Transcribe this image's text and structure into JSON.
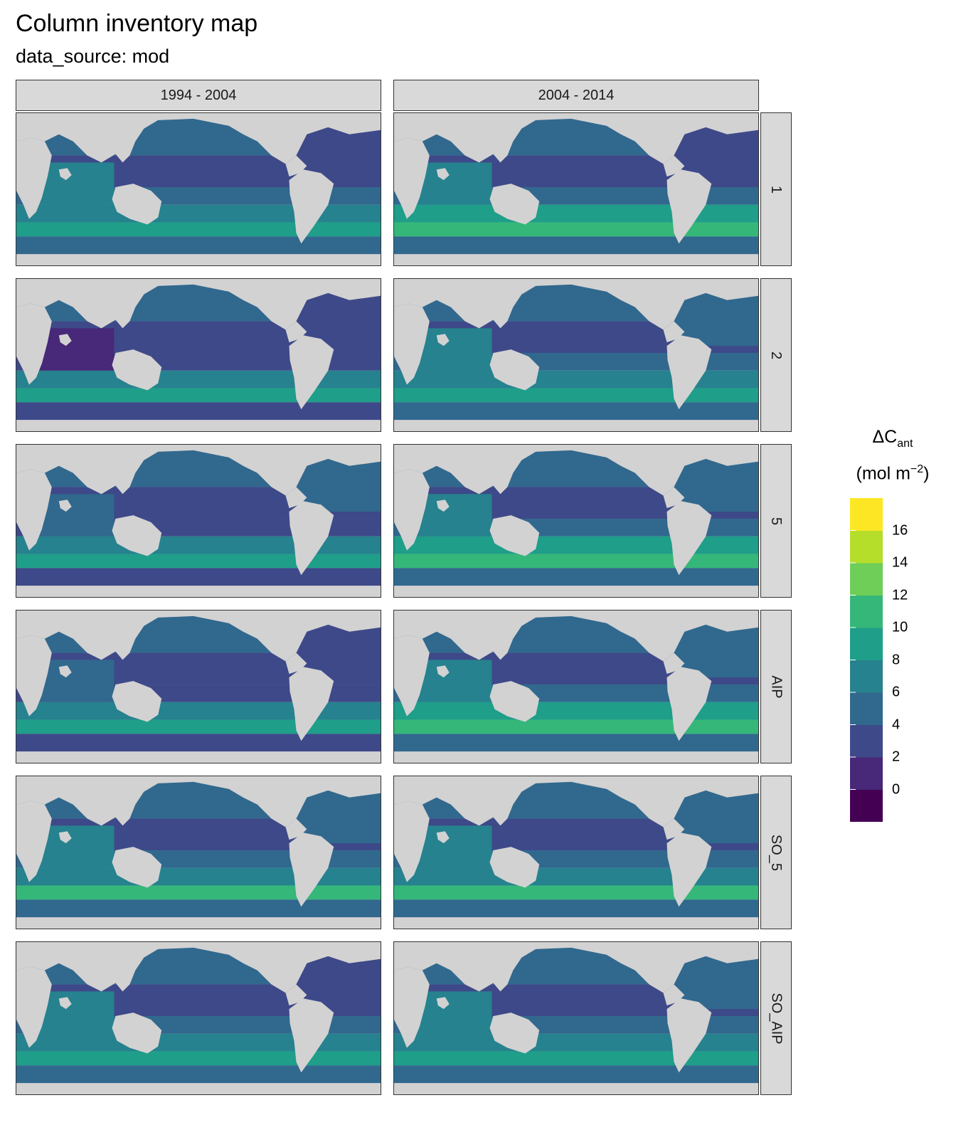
{
  "title": "Column inventory map",
  "subtitle": "data_source: mod",
  "chart_data": {
    "type": "heatmap",
    "title": "Column inventory map",
    "subtitle": "data_source: mod",
    "facet_columns": [
      "1994 - 2004",
      "2004 - 2014"
    ],
    "facet_rows": [
      "1",
      "2",
      "5",
      "AIP",
      "SO_5",
      "SO_AIP"
    ],
    "legend": {
      "title_main": "ΔC",
      "title_sub": "ant",
      "unit_main": "(mol m",
      "unit_sup": "−2",
      "unit_end": ")",
      "position": "right",
      "breaks": [
        0,
        2,
        4,
        6,
        8,
        10,
        12,
        14,
        16
      ],
      "bins": [
        {
          "from": -2,
          "to": 0,
          "color": "#440154"
        },
        {
          "from": 0,
          "to": 2,
          "color": "#482878"
        },
        {
          "from": 2,
          "to": 4,
          "color": "#3e4989"
        },
        {
          "from": 4,
          "to": 6,
          "color": "#31688e"
        },
        {
          "from": 6,
          "to": 8,
          "color": "#26828e"
        },
        {
          "from": 8,
          "to": 10,
          "color": "#1f9e89"
        },
        {
          "from": 10,
          "to": 12,
          "color": "#35b779"
        },
        {
          "from": 12,
          "to": 14,
          "color": "#6ece58"
        },
        {
          "from": 14,
          "to": 16,
          "color": "#b5de2b"
        },
        {
          "from": 16,
          "to": 18,
          "color": "#fde725"
        }
      ]
    },
    "land_color": "#d2d2d2",
    "panels": [
      {
        "row": "1",
        "col": "1994 - 2004",
        "south_ocean": 9,
        "mid_south": 7,
        "tropics": 4,
        "north_pacific": 4,
        "north_atlantic": 3,
        "indian": 6
      },
      {
        "row": "1",
        "col": "2004 - 2014",
        "south_ocean": 10,
        "mid_south": 8,
        "tropics": 4,
        "north_pacific": 4,
        "north_atlantic": 3,
        "indian": 7
      },
      {
        "row": "2",
        "col": "1994 - 2004",
        "south_ocean": 8,
        "mid_south": 6,
        "tropics": 2,
        "north_pacific": 4,
        "north_atlantic": 3,
        "indian": 1
      },
      {
        "row": "2",
        "col": "2004 - 2014",
        "south_ocean": 9,
        "mid_south": 7,
        "tropics": 4,
        "north_pacific": 4,
        "north_atlantic": 4,
        "indian": 6
      },
      {
        "row": "5",
        "col": "1994 - 2004",
        "south_ocean": 9,
        "mid_south": 6,
        "tropics": 3,
        "north_pacific": 4,
        "north_atlantic": 4,
        "indian": 5
      },
      {
        "row": "5",
        "col": "2004 - 2014",
        "south_ocean": 11,
        "mid_south": 8,
        "tropics": 4,
        "north_pacific": 4,
        "north_atlantic": 4,
        "indian": 7
      },
      {
        "row": "AIP",
        "col": "1994 - 2004",
        "south_ocean": 9,
        "mid_south": 6,
        "tropics": 3,
        "north_pacific": 4,
        "north_atlantic": 3,
        "indian": 5
      },
      {
        "row": "AIP",
        "col": "2004 - 2014",
        "south_ocean": 11,
        "mid_south": 8,
        "tropics": 4,
        "north_pacific": 4,
        "north_atlantic": 4,
        "indian": 7
      },
      {
        "row": "SO_5",
        "col": "1994 - 2004",
        "south_ocean": 10,
        "mid_south": 7,
        "tropics": 4,
        "north_pacific": 4,
        "north_atlantic": 4,
        "indian": 6
      },
      {
        "row": "SO_5",
        "col": "2004 - 2014",
        "south_ocean": 11,
        "mid_south": 7,
        "tropics": 4,
        "north_pacific": 4,
        "north_atlantic": 4,
        "indian": 6
      },
      {
        "row": "SO_AIP",
        "col": "1994 - 2004",
        "south_ocean": 9,
        "mid_south": 7,
        "tropics": 4,
        "north_pacific": 4,
        "north_atlantic": 3,
        "indian": 6
      },
      {
        "row": "SO_AIP",
        "col": "2004 - 2014",
        "south_ocean": 9,
        "mid_south": 7,
        "tropics": 4,
        "north_pacific": 4,
        "north_atlantic": 4,
        "indian": 6
      }
    ]
  }
}
